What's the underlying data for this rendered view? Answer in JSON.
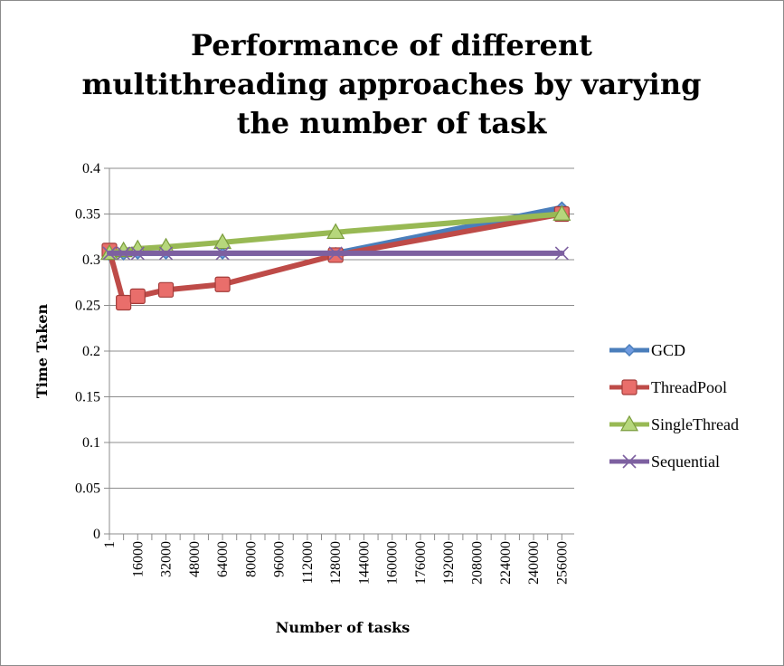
{
  "chart_data": {
    "type": "line",
    "title_lines": [
      "Performance of different",
      "multithreading approaches by varying",
      "the number of task"
    ],
    "xlabel": "Number of tasks",
    "ylabel": "Time Taken",
    "xlim": [
      0,
      263000
    ],
    "ylim": [
      0,
      0.4
    ],
    "x_ticks": [
      1,
      16000,
      32000,
      48000,
      64000,
      80000,
      96000,
      112000,
      128000,
      144000,
      160000,
      176000,
      192000,
      208000,
      224000,
      240000,
      256000
    ],
    "y_ticks": [
      0,
      0.05,
      0.1,
      0.15,
      0.2,
      0.25,
      0.3,
      0.35,
      0.4
    ],
    "grid": "horizontal",
    "legend_position": "right",
    "x": [
      1,
      8000,
      16000,
      32000,
      64000,
      128000,
      256000
    ],
    "series": [
      {
        "name": "GCD",
        "color": "#4a7ebb",
        "marker": "diamond",
        "values": [
          0.305,
          0.306,
          0.307,
          0.307,
          0.307,
          0.307,
          0.357
        ]
      },
      {
        "name": "ThreadPool",
        "color": "#be4b48",
        "marker": "square",
        "values": [
          0.31,
          0.253,
          0.26,
          0.267,
          0.273,
          0.305,
          0.35
        ]
      },
      {
        "name": "SingleThread",
        "color": "#98b954",
        "marker": "triangle",
        "values": [
          0.307,
          0.31,
          0.312,
          0.314,
          0.319,
          0.33,
          0.35
        ]
      },
      {
        "name": "Sequential",
        "color": "#7d60a0",
        "marker": "x",
        "values": [
          0.307,
          0.307,
          0.307,
          0.307,
          0.307,
          0.307,
          0.307
        ]
      }
    ]
  }
}
